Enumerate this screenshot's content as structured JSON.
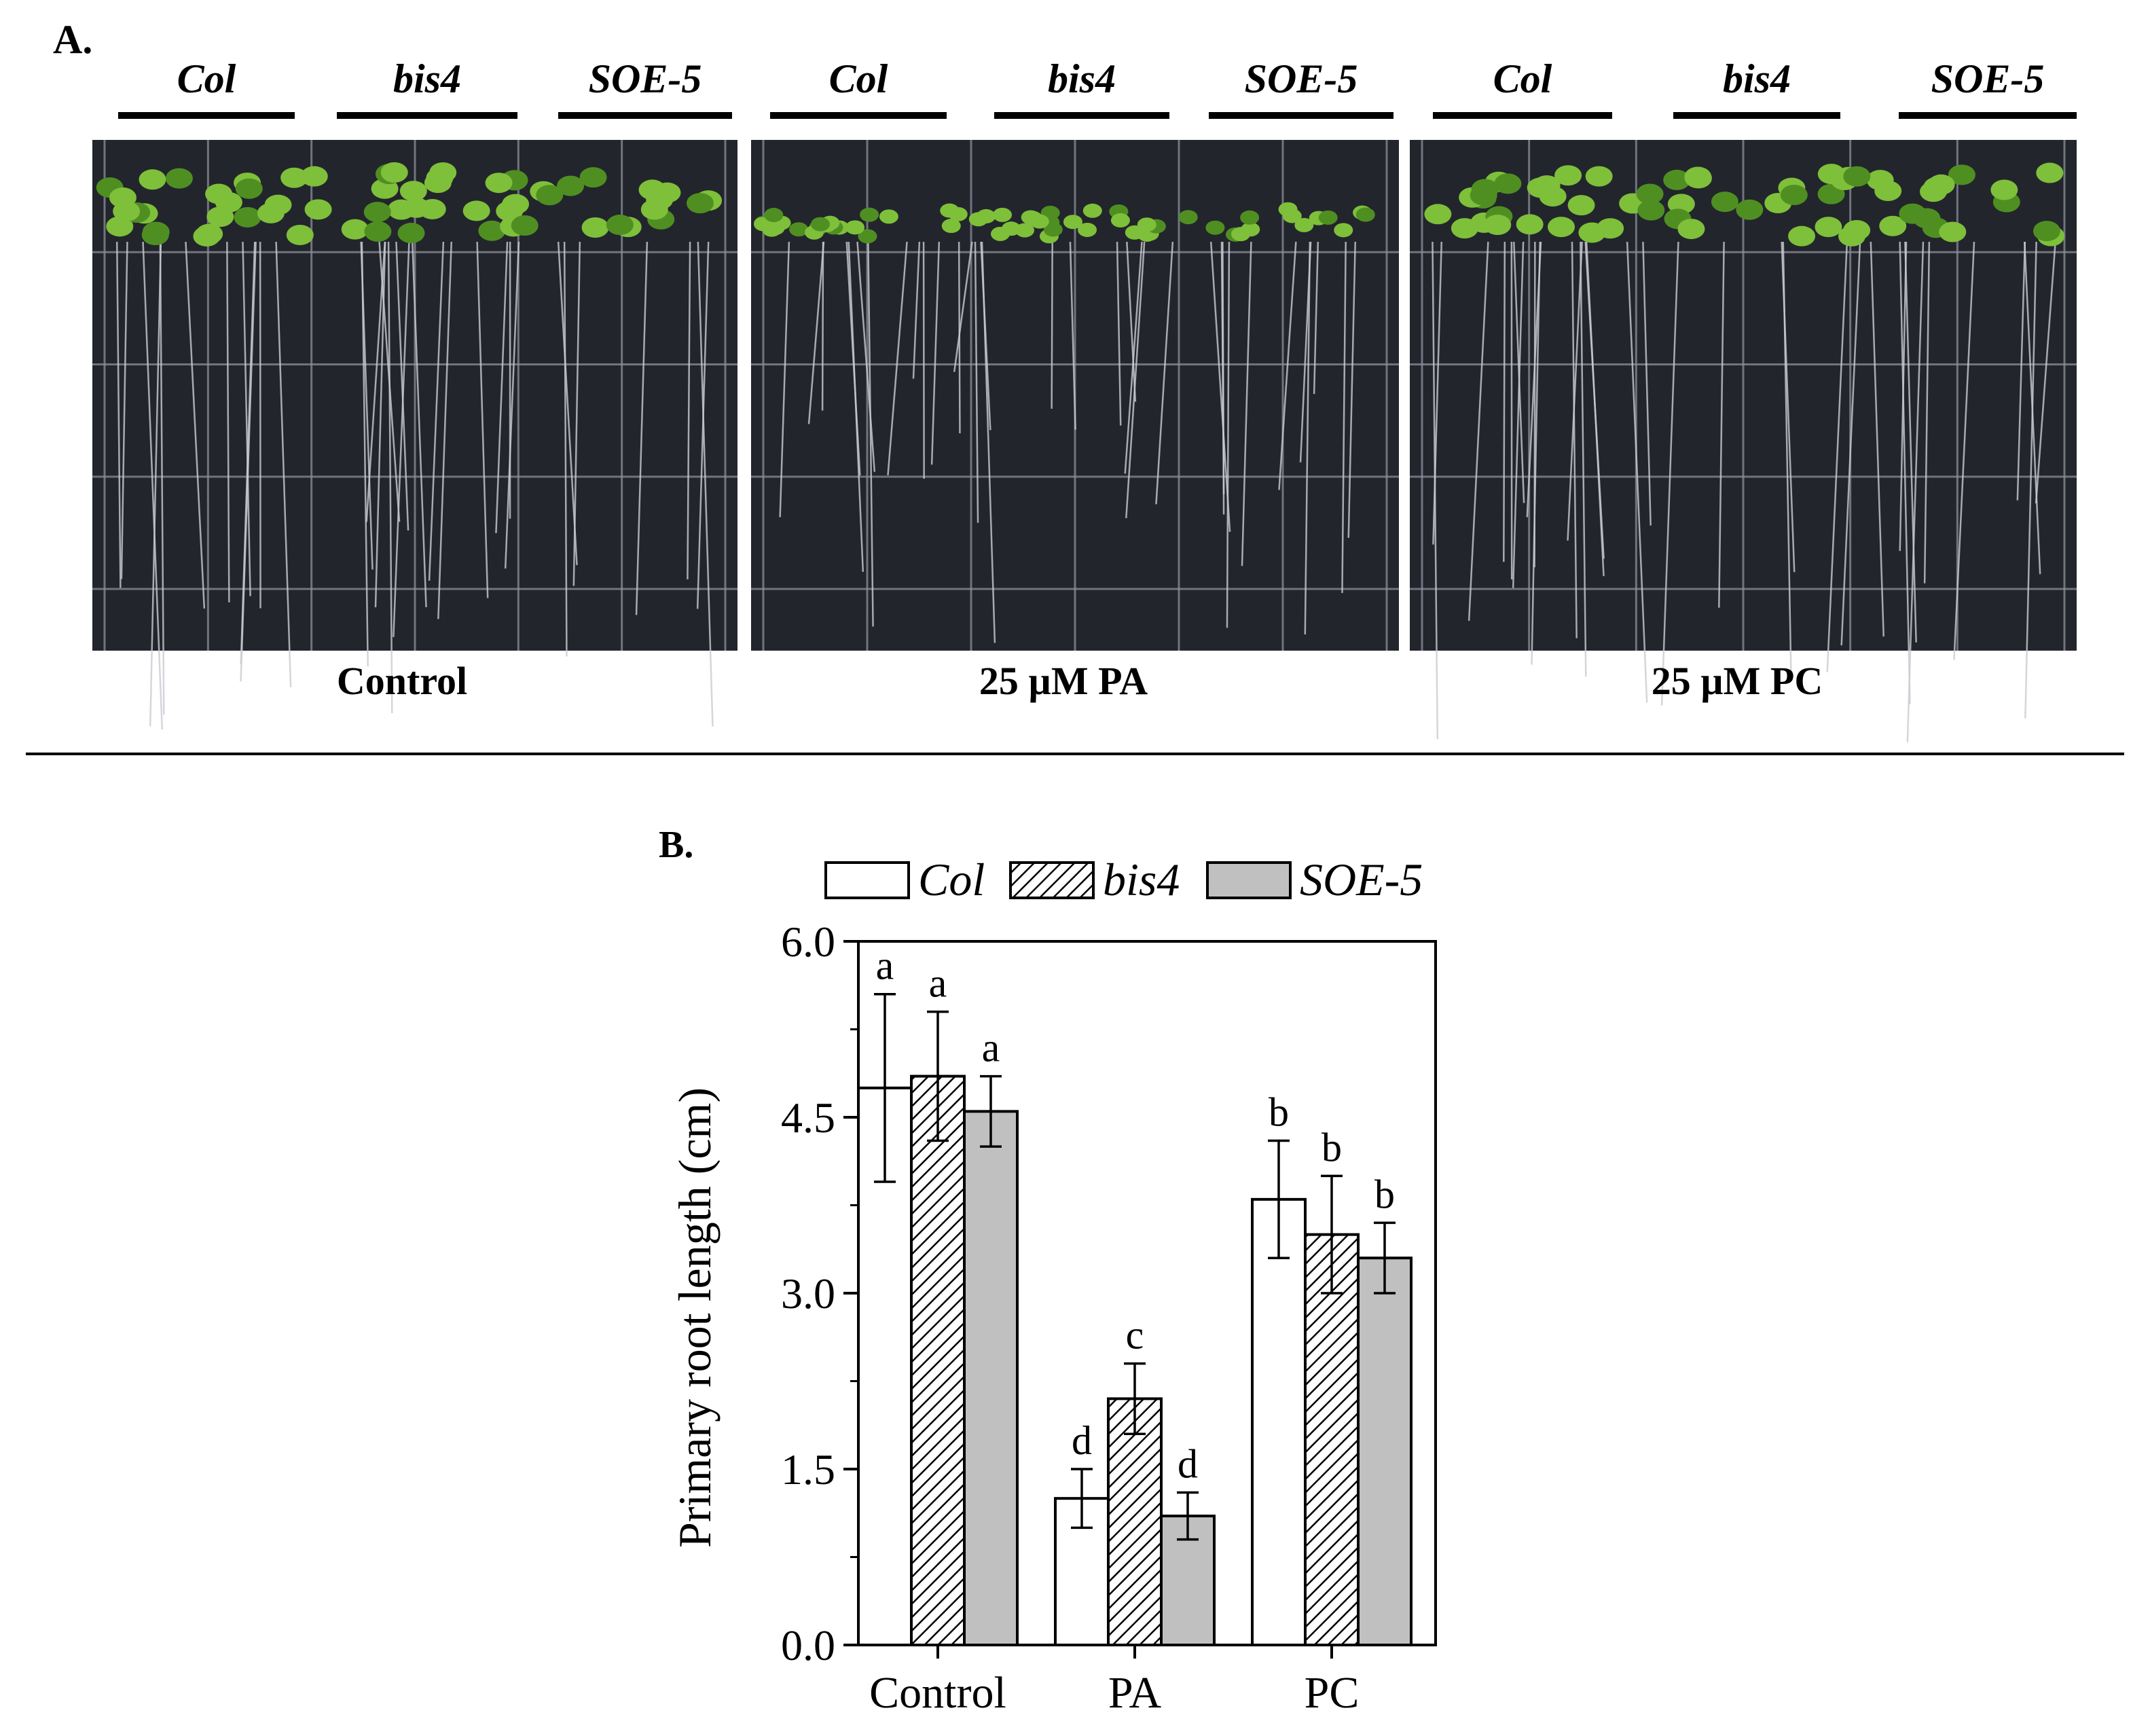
{
  "panel_a": {
    "label": "A.",
    "genotypes": [
      "Col",
      "bis4",
      "SOE-5"
    ],
    "plates": [
      {
        "caption": "Control"
      },
      {
        "caption": "25 µM PA"
      },
      {
        "caption": "25 µM PC"
      }
    ]
  },
  "panel_b": {
    "label": "B."
  },
  "colors": {
    "plate_bg": "#23252d",
    "grid_line": "#8c8f99",
    "leaf_green": "#7ec03a",
    "leaf_dark": "#4f8f22",
    "root": "#c9ccd2",
    "bar_col": "#ffffff",
    "bar_soe": "#c0c0c0"
  },
  "chart_data": {
    "type": "bar",
    "title": "",
    "xlabel": "",
    "ylabel": "Primary root length (cm)",
    "ylim": [
      0,
      6
    ],
    "yticks": [
      "0.0",
      "1.5",
      "3.0",
      "4.5",
      "6.0"
    ],
    "categories": [
      "Control",
      "PA",
      "PC"
    ],
    "legend_position": "top",
    "series": [
      {
        "name": "Col",
        "fill": "white",
        "values": [
          4.75,
          1.25,
          3.8
        ],
        "errors": [
          0.8,
          0.25,
          0.5
        ],
        "letters": [
          "a",
          "d",
          "b"
        ]
      },
      {
        "name": "bis4",
        "fill": "hatched",
        "values": [
          4.85,
          2.1,
          3.5
        ],
        "errors": [
          0.55,
          0.3,
          0.5
        ],
        "letters": [
          "a",
          "c",
          "b"
        ]
      },
      {
        "name": "SOE-5",
        "fill": "gray",
        "values": [
          4.55,
          1.1,
          3.3
        ],
        "errors": [
          0.3,
          0.2,
          0.3
        ],
        "letters": [
          "a",
          "d",
          "b"
        ]
      }
    ]
  }
}
